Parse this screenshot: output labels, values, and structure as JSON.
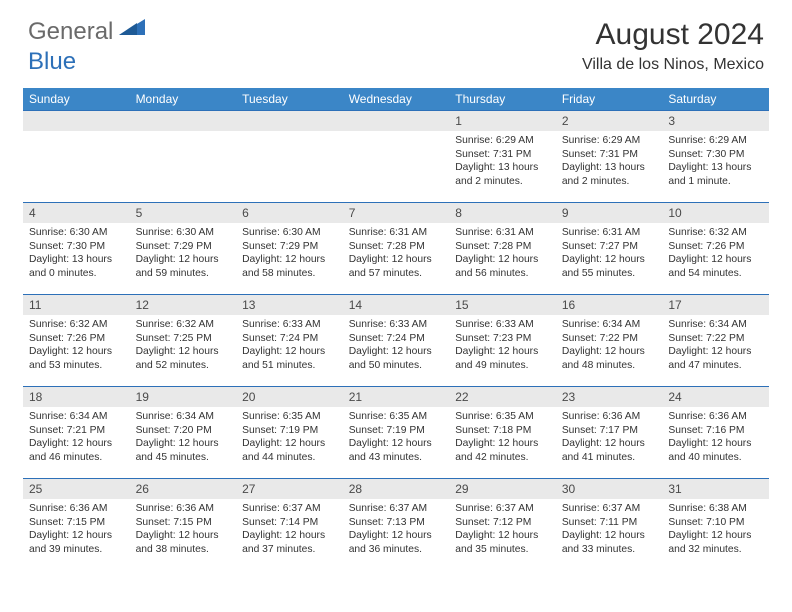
{
  "logo": {
    "text1": "General",
    "text2": "Blue"
  },
  "colors": {
    "header_band": "#3b86c7",
    "daynum_band": "#e9e9e9",
    "accent": "#2d70b8",
    "text": "#333333",
    "logo_gray": "#6a6a6a"
  },
  "title": {
    "month": "August 2024",
    "location": "Villa de los Ninos, Mexico"
  },
  "days_of_week": [
    "Sunday",
    "Monday",
    "Tuesday",
    "Wednesday",
    "Thursday",
    "Friday",
    "Saturday"
  ],
  "weeks": [
    [
      {
        "n": "",
        "sr": "",
        "ss": "",
        "dl": ""
      },
      {
        "n": "",
        "sr": "",
        "ss": "",
        "dl": ""
      },
      {
        "n": "",
        "sr": "",
        "ss": "",
        "dl": ""
      },
      {
        "n": "",
        "sr": "",
        "ss": "",
        "dl": ""
      },
      {
        "n": "1",
        "sr": "6:29 AM",
        "ss": "7:31 PM",
        "dl": "13 hours and 2 minutes."
      },
      {
        "n": "2",
        "sr": "6:29 AM",
        "ss": "7:31 PM",
        "dl": "13 hours and 2 minutes."
      },
      {
        "n": "3",
        "sr": "6:29 AM",
        "ss": "7:30 PM",
        "dl": "13 hours and 1 minute."
      }
    ],
    [
      {
        "n": "4",
        "sr": "6:30 AM",
        "ss": "7:30 PM",
        "dl": "13 hours and 0 minutes."
      },
      {
        "n": "5",
        "sr": "6:30 AM",
        "ss": "7:29 PM",
        "dl": "12 hours and 59 minutes."
      },
      {
        "n": "6",
        "sr": "6:30 AM",
        "ss": "7:29 PM",
        "dl": "12 hours and 58 minutes."
      },
      {
        "n": "7",
        "sr": "6:31 AM",
        "ss": "7:28 PM",
        "dl": "12 hours and 57 minutes."
      },
      {
        "n": "8",
        "sr": "6:31 AM",
        "ss": "7:28 PM",
        "dl": "12 hours and 56 minutes."
      },
      {
        "n": "9",
        "sr": "6:31 AM",
        "ss": "7:27 PM",
        "dl": "12 hours and 55 minutes."
      },
      {
        "n": "10",
        "sr": "6:32 AM",
        "ss": "7:26 PM",
        "dl": "12 hours and 54 minutes."
      }
    ],
    [
      {
        "n": "11",
        "sr": "6:32 AM",
        "ss": "7:26 PM",
        "dl": "12 hours and 53 minutes."
      },
      {
        "n": "12",
        "sr": "6:32 AM",
        "ss": "7:25 PM",
        "dl": "12 hours and 52 minutes."
      },
      {
        "n": "13",
        "sr": "6:33 AM",
        "ss": "7:24 PM",
        "dl": "12 hours and 51 minutes."
      },
      {
        "n": "14",
        "sr": "6:33 AM",
        "ss": "7:24 PM",
        "dl": "12 hours and 50 minutes."
      },
      {
        "n": "15",
        "sr": "6:33 AM",
        "ss": "7:23 PM",
        "dl": "12 hours and 49 minutes."
      },
      {
        "n": "16",
        "sr": "6:34 AM",
        "ss": "7:22 PM",
        "dl": "12 hours and 48 minutes."
      },
      {
        "n": "17",
        "sr": "6:34 AM",
        "ss": "7:22 PM",
        "dl": "12 hours and 47 minutes."
      }
    ],
    [
      {
        "n": "18",
        "sr": "6:34 AM",
        "ss": "7:21 PM",
        "dl": "12 hours and 46 minutes."
      },
      {
        "n": "19",
        "sr": "6:34 AM",
        "ss": "7:20 PM",
        "dl": "12 hours and 45 minutes."
      },
      {
        "n": "20",
        "sr": "6:35 AM",
        "ss": "7:19 PM",
        "dl": "12 hours and 44 minutes."
      },
      {
        "n": "21",
        "sr": "6:35 AM",
        "ss": "7:19 PM",
        "dl": "12 hours and 43 minutes."
      },
      {
        "n": "22",
        "sr": "6:35 AM",
        "ss": "7:18 PM",
        "dl": "12 hours and 42 minutes."
      },
      {
        "n": "23",
        "sr": "6:36 AM",
        "ss": "7:17 PM",
        "dl": "12 hours and 41 minutes."
      },
      {
        "n": "24",
        "sr": "6:36 AM",
        "ss": "7:16 PM",
        "dl": "12 hours and 40 minutes."
      }
    ],
    [
      {
        "n": "25",
        "sr": "6:36 AM",
        "ss": "7:15 PM",
        "dl": "12 hours and 39 minutes."
      },
      {
        "n": "26",
        "sr": "6:36 AM",
        "ss": "7:15 PM",
        "dl": "12 hours and 38 minutes."
      },
      {
        "n": "27",
        "sr": "6:37 AM",
        "ss": "7:14 PM",
        "dl": "12 hours and 37 minutes."
      },
      {
        "n": "28",
        "sr": "6:37 AM",
        "ss": "7:13 PM",
        "dl": "12 hours and 36 minutes."
      },
      {
        "n": "29",
        "sr": "6:37 AM",
        "ss": "7:12 PM",
        "dl": "12 hours and 35 minutes."
      },
      {
        "n": "30",
        "sr": "6:37 AM",
        "ss": "7:11 PM",
        "dl": "12 hours and 33 minutes."
      },
      {
        "n": "31",
        "sr": "6:38 AM",
        "ss": "7:10 PM",
        "dl": "12 hours and 32 minutes."
      }
    ]
  ],
  "labels": {
    "sunrise": "Sunrise: ",
    "sunset": "Sunset: ",
    "daylight": "Daylight: "
  }
}
